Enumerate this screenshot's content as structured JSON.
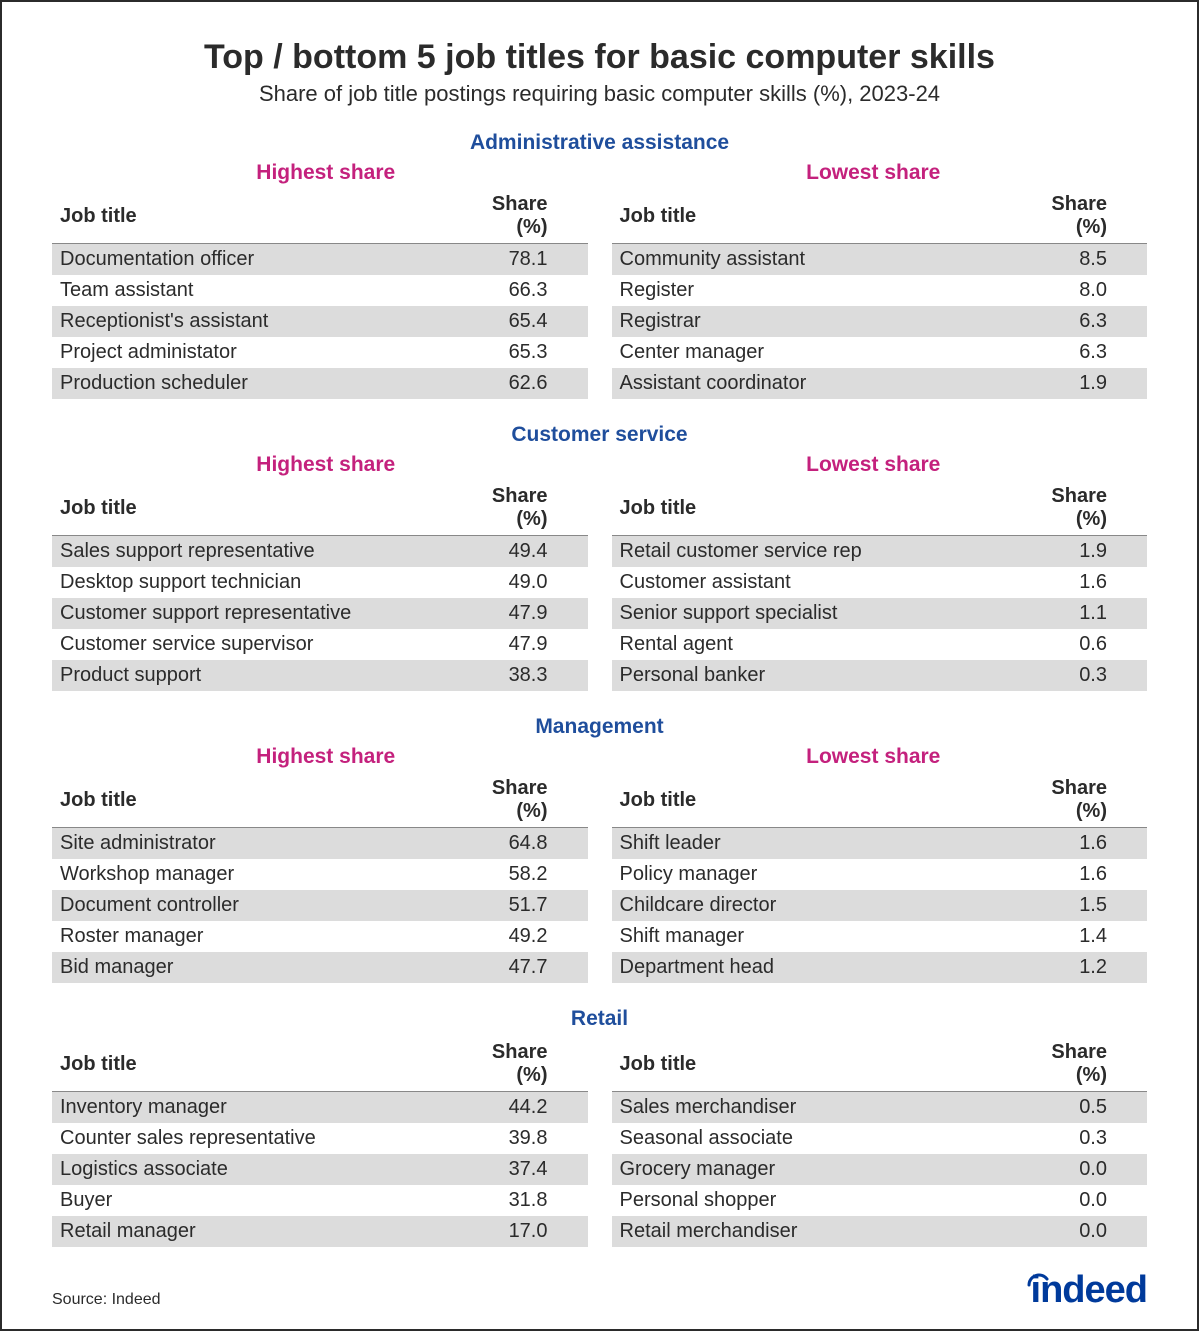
{
  "title": "Top / bottom 5 job titles for basic computer skills",
  "subtitle": "Share of job title postings requiring basic computer skills (%), 2023-24",
  "source_label": "Source: Indeed",
  "logo_text": "indeed",
  "colors": {
    "section_header": "#1f4e9c",
    "subheader": "#c4217d",
    "row_stripe": "#dcdcdc",
    "text": "#2b2b2b",
    "logo": "#003a9b",
    "border": "#2b2b2b",
    "header_rule": "#888888",
    "background": "#ffffff"
  },
  "typography": {
    "title_fontsize": 34,
    "subtitle_fontsize": 22,
    "section_header_fontsize": 21,
    "subheader_fontsize": 21,
    "table_fontsize": 20,
    "source_fontsize": 16,
    "logo_fontsize": 38
  },
  "column_labels": {
    "job_title": "Job title",
    "share": "Share (%)"
  },
  "subheader_labels": {
    "highest": "Highest share",
    "lowest": "Lowest share"
  },
  "sections": [
    {
      "name": "Administrative assistance",
      "show_subheaders": true,
      "highest": [
        {
          "title": "Documentation officer",
          "share": "78.1"
        },
        {
          "title": "Team assistant",
          "share": "66.3"
        },
        {
          "title": "Receptionist's assistant",
          "share": "65.4"
        },
        {
          "title": "Project administator",
          "share": "65.3"
        },
        {
          "title": "Production scheduler",
          "share": "62.6"
        }
      ],
      "lowest": [
        {
          "title": "Community assistant",
          "share": "8.5"
        },
        {
          "title": "Register",
          "share": "8.0"
        },
        {
          "title": "Registrar",
          "share": "6.3"
        },
        {
          "title": "Center manager",
          "share": "6.3"
        },
        {
          "title": "Assistant coordinator",
          "share": "1.9"
        }
      ]
    },
    {
      "name": "Customer service",
      "show_subheaders": true,
      "highest": [
        {
          "title": "Sales support representative",
          "share": "49.4"
        },
        {
          "title": "Desktop support technician",
          "share": "49.0"
        },
        {
          "title": "Customer support representative",
          "share": "47.9"
        },
        {
          "title": "Customer service supervisor",
          "share": "47.9"
        },
        {
          "title": "Product support",
          "share": "38.3"
        }
      ],
      "lowest": [
        {
          "title": "Retail customer service rep",
          "share": "1.9"
        },
        {
          "title": "Customer assistant",
          "share": "1.6"
        },
        {
          "title": "Senior support specialist",
          "share": "1.1"
        },
        {
          "title": "Rental agent",
          "share": "0.6"
        },
        {
          "title": "Personal banker",
          "share": "0.3"
        }
      ]
    },
    {
      "name": "Management",
      "show_subheaders": true,
      "highest": [
        {
          "title": "Site administrator",
          "share": "64.8"
        },
        {
          "title": "Workshop manager",
          "share": "58.2"
        },
        {
          "title": "Document controller",
          "share": "51.7"
        },
        {
          "title": "Roster manager",
          "share": "49.2"
        },
        {
          "title": "Bid manager",
          "share": "47.7"
        }
      ],
      "lowest": [
        {
          "title": "Shift leader",
          "share": "1.6"
        },
        {
          "title": "Policy manager",
          "share": "1.6"
        },
        {
          "title": "Childcare director",
          "share": "1.5"
        },
        {
          "title": "Shift manager",
          "share": "1.4"
        },
        {
          "title": "Department head",
          "share": "1.2"
        }
      ]
    },
    {
      "name": "Retail",
      "show_subheaders": false,
      "highest": [
        {
          "title": "Inventory manager",
          "share": "44.2"
        },
        {
          "title": "Counter sales representative",
          "share": "39.8"
        },
        {
          "title": "Logistics associate",
          "share": "37.4"
        },
        {
          "title": "Buyer",
          "share": "31.8"
        },
        {
          "title": "Retail manager",
          "share": "17.0"
        }
      ],
      "lowest": [
        {
          "title": "Sales merchandiser",
          "share": "0.5"
        },
        {
          "title": "Seasonal associate",
          "share": "0.3"
        },
        {
          "title": "Grocery manager",
          "share": "0.0"
        },
        {
          "title": "Personal shopper",
          "share": "0.0"
        },
        {
          "title": "Retail merchandiser",
          "share": "0.0"
        }
      ]
    }
  ]
}
